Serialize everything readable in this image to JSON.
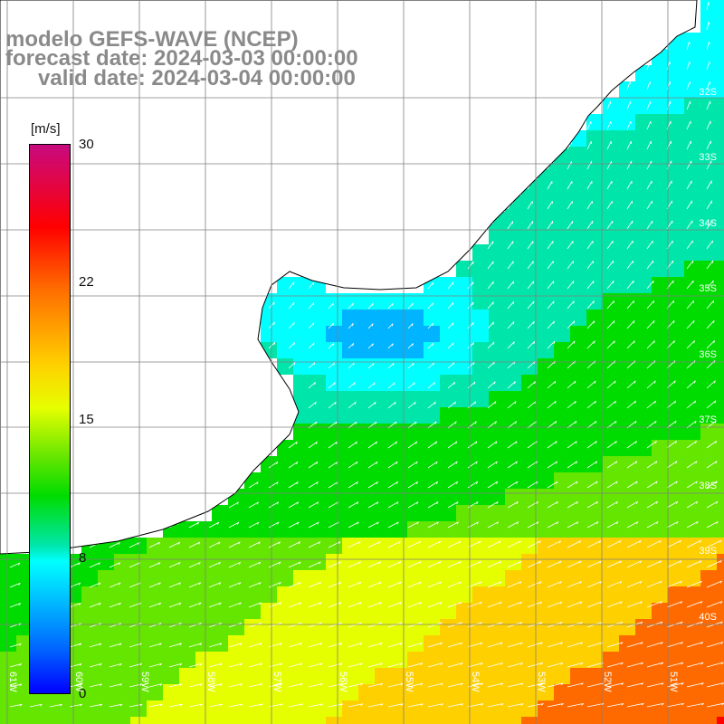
{
  "title": {
    "line1": "modelo GEFS-WAVE (NCEP)",
    "line2": "forecast date: 2024-03-03 00:00:00",
    "line3": "valid date: 2024-03-04 00:00:00"
  },
  "colorbar": {
    "unit": "[m/s]",
    "ticks": [
      "30",
      "22",
      "15",
      "8",
      "0"
    ],
    "tick_values": [
      30,
      22,
      15,
      8,
      0
    ],
    "colors": [
      "#0000ff",
      "#0064ff",
      "#00b4ff",
      "#00ffff",
      "#00e6aa",
      "#00dc00",
      "#64e600",
      "#e6ff00",
      "#ffd000",
      "#ff6a00",
      "#ff0000",
      "#c80a80"
    ]
  },
  "axes": {
    "lat_labels": [
      "32S",
      "33S",
      "34S",
      "35S",
      "36S",
      "37S",
      "38S",
      "39S",
      "40S"
    ],
    "lon_labels": [
      "61W",
      "60W",
      "59W",
      "58W",
      "57W",
      "56W",
      "55W",
      "54W",
      "53W",
      "52W",
      "51W"
    ]
  },
  "map": {
    "land_color": "#ffffff",
    "coast_color": "#000000",
    "grid_color": "#808080",
    "arrow_color": "#ffffff",
    "region": "Rio de la Plata / Uruguay coast, South Atlantic"
  }
}
